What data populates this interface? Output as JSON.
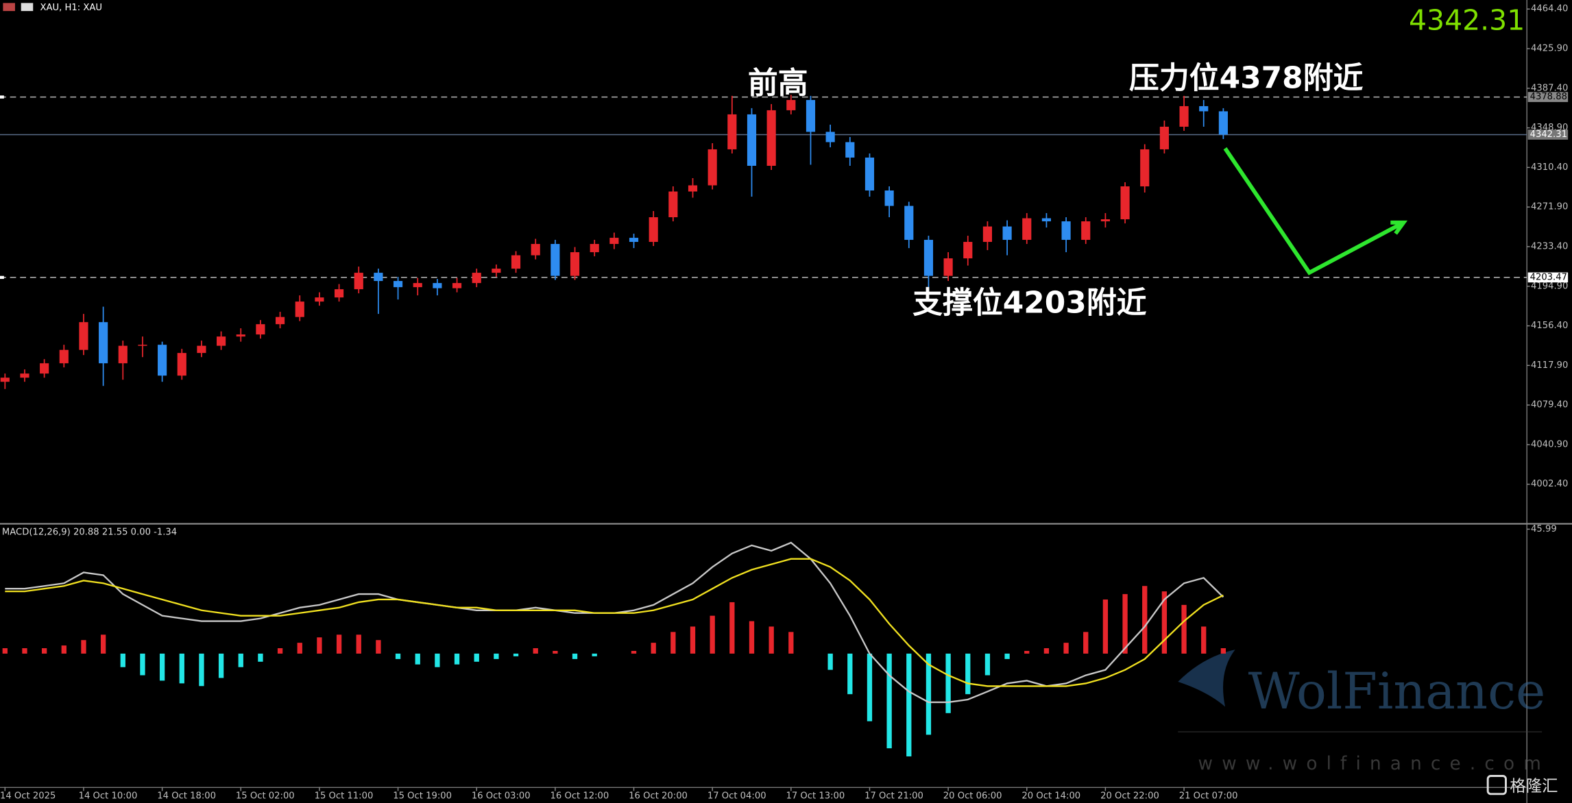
{
  "chart_data": [
    {
      "type": "candlestick",
      "title": "XAU, H1: XAU",
      "categories": [
        "14 Oct 2025",
        null,
        null,
        null,
        "14 Oct 10:00",
        null,
        null,
        null,
        "14 Oct 18:00",
        null,
        null,
        null,
        "15 Oct 02:00",
        null,
        null,
        null,
        "15 Oct 11:00",
        null,
        null,
        null,
        "15 Oct 19:00",
        null,
        null,
        null,
        "16 Oct 03:00",
        null,
        null,
        null,
        "16 Oct 12:00",
        null,
        null,
        null,
        "16 Oct 20:00",
        null,
        null,
        null,
        "17 Oct 04:00",
        null,
        null,
        null,
        "17 Oct 13:00",
        null,
        null,
        null,
        "17 Oct 21:00",
        null,
        null,
        null,
        "20 Oct 06:00",
        null,
        null,
        null,
        "20 Oct 14:00",
        null,
        null,
        null,
        "20 Oct 22:00",
        null,
        null,
        null,
        "21 Oct 07:00",
        null,
        null
      ],
      "open": [
        4102,
        4106,
        4110,
        4120,
        4133,
        4160,
        4120,
        4137,
        4138,
        4108,
        4130,
        4137,
        4146,
        4148,
        4158,
        4165,
        4180,
        4184,
        4192,
        4208,
        4200,
        4194,
        4198,
        4193,
        4198,
        4208,
        4212,
        4225,
        4236,
        4205,
        4228,
        4236,
        4242,
        4238,
        4262,
        4287,
        4293,
        4328,
        4362,
        4312,
        4366,
        4376,
        4345,
        4335,
        4320,
        4288,
        4273,
        4240,
        4205,
        4222,
        4238,
        4253,
        4240,
        4261,
        4258,
        4240,
        4258,
        4260,
        4292,
        4328,
        4350,
        4370,
        4365
      ],
      "high": [
        4110,
        4114,
        4124,
        4138,
        4168,
        4175,
        4142,
        4146,
        4141,
        4134,
        4142,
        4151,
        4154,
        4162,
        4170,
        4186,
        4189,
        4197,
        4214,
        4212,
        4204,
        4203,
        4202,
        4203,
        4212,
        4216,
        4229,
        4241,
        4240,
        4233,
        4240,
        4247,
        4246,
        4268,
        4292,
        4300,
        4334,
        4380,
        4368,
        4372,
        4381,
        4380,
        4352,
        4340,
        4324,
        4292,
        4277,
        4244,
        4228,
        4244,
        4258,
        4259,
        4266,
        4266,
        4262,
        4262,
        4266,
        4296,
        4333,
        4356,
        4380,
        4376,
        4368
      ],
      "low": [
        4095,
        4102,
        4106,
        4116,
        4128,
        4098,
        4104,
        4126,
        4102,
        4104,
        4126,
        4133,
        4141,
        4144,
        4154,
        4161,
        4176,
        4180,
        4188,
        4168,
        4182,
        4186,
        4186,
        4189,
        4194,
        4204,
        4208,
        4221,
        4201,
        4201,
        4224,
        4231,
        4232,
        4234,
        4258,
        4281,
        4289,
        4324,
        4282,
        4308,
        4362,
        4313,
        4330,
        4312,
        4282,
        4262,
        4232,
        4190,
        4200,
        4215,
        4230,
        4225,
        4236,
        4252,
        4228,
        4236,
        4252,
        4256,
        4286,
        4324,
        4346,
        4350,
        4338
      ],
      "close": [
        4106,
        4110,
        4120,
        4133,
        4160,
        4120,
        4137,
        4138,
        4108,
        4130,
        4137,
        4146,
        4148,
        4158,
        4165,
        4180,
        4184,
        4192,
        4208,
        4200,
        4194,
        4198,
        4193,
        4198,
        4208,
        4212,
        4225,
        4236,
        4205,
        4228,
        4236,
        4242,
        4238,
        4262,
        4287,
        4293,
        4328,
        4362,
        4312,
        4366,
        4376,
        4345,
        4335,
        4320,
        4288,
        4273,
        4240,
        4205,
        4222,
        4238,
        4253,
        4240,
        4261,
        4258,
        4240,
        4258,
        4260,
        4292,
        4328,
        4350,
        4370,
        4365,
        4342.31
      ],
      "up_color": "#e8262c",
      "down_color": "#2e8cf0",
      "ylim": [
        3964.4,
        4473.2
      ],
      "yticks": [
        {
          "value": 4464.4,
          "label": "4464.40"
        },
        {
          "value": 4425.9,
          "label": "4425.90"
        },
        {
          "value": 4387.4,
          "label": "4387.40"
        },
        {
          "value": 4348.9,
          "label": "4348.90"
        },
        {
          "value": 4310.4,
          "label": "4310.40"
        },
        {
          "value": 4271.9,
          "label": "4271.90"
        },
        {
          "value": 4233.4,
          "label": "4233.40"
        },
        {
          "value": 4194.9,
          "label": "4194.90"
        },
        {
          "value": 4156.4,
          "label": "4156.40"
        },
        {
          "value": 4117.9,
          "label": "4117.90"
        },
        {
          "value": 4079.4,
          "label": "4079.40"
        },
        {
          "value": 4040.9,
          "label": "4040.90"
        },
        {
          "value": 4002.4,
          "label": "4002.40"
        }
      ],
      "grid": false,
      "levels": [
        4378.88,
        4203.47
      ],
      "last_price": 4342.31,
      "annotations": [
        "前高",
        "压力位4378附近",
        "支撑位4203附近"
      ]
    },
    {
      "type": "macd",
      "title": "MACD(12,26,9) 20.88 21.55 0.00 -1.34",
      "histogram": {
        "up_color": "#e8262c",
        "down_color": "#22e6e6",
        "values": [
          2,
          2,
          2,
          3,
          5,
          7,
          -5,
          -8,
          -10,
          -11,
          -12,
          -9,
          -5,
          -3,
          2,
          4,
          6,
          7,
          7,
          5,
          -2,
          -4,
          -5,
          -4,
          -3,
          -2,
          -1,
          2,
          1,
          -2,
          -1,
          0,
          1,
          4,
          8,
          10,
          14,
          19,
          12,
          10,
          8,
          0,
          -6,
          -15,
          -25,
          -35,
          -38,
          -30,
          -22,
          -15,
          -8,
          -2,
          1,
          2,
          4,
          8,
          20,
          22,
          25,
          23,
          18,
          10,
          2
        ]
      },
      "main": {
        "color": "#c8c8c8",
        "values": [
          24,
          24,
          25,
          26,
          30,
          29,
          22,
          18,
          14,
          13,
          12,
          12,
          12,
          13,
          15,
          17,
          18,
          20,
          22,
          22,
          20,
          19,
          18,
          17,
          16,
          16,
          16,
          17,
          16,
          15,
          15,
          15,
          16,
          18,
          22,
          26,
          32,
          37,
          40,
          38,
          41,
          35,
          26,
          14,
          0,
          -8,
          -14,
          -18,
          -18,
          -17,
          -14,
          -11,
          -10,
          -12,
          -11,
          -8,
          -6,
          2,
          10,
          20,
          26,
          28,
          20.88
        ]
      },
      "signal": {
        "color": "#f0e020",
        "values": [
          23,
          23,
          24,
          25,
          27,
          26,
          24,
          22,
          20,
          18,
          16,
          15,
          14,
          14,
          14,
          15,
          16,
          17,
          19,
          20,
          20,
          19,
          18,
          17,
          17,
          16,
          16,
          16,
          16,
          16,
          15,
          15,
          15,
          16,
          18,
          20,
          24,
          28,
          31,
          33,
          35,
          35,
          32,
          27,
          20,
          11,
          3,
          -4,
          -8,
          -11,
          -12,
          -12,
          -12,
          -12,
          -12,
          -11,
          -9,
          -6,
          -2,
          5,
          12,
          18,
          21.55
        ]
      },
      "ylim": [
        -49.3,
        47.8
      ],
      "yticks": [
        45.99
      ]
    }
  ],
  "watermark": {
    "brand": "WolFinance",
    "url": "www.wolfinance.com",
    "source": "格隆汇"
  }
}
